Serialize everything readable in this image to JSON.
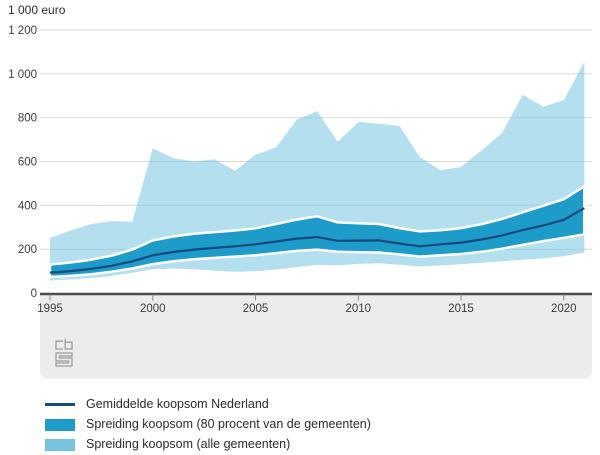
{
  "chart_data": {
    "type": "area",
    "unit_label": "1 000 euro",
    "x": [
      1995,
      1996,
      1997,
      1998,
      1999,
      2000,
      2001,
      2002,
      2003,
      2004,
      2005,
      2006,
      2007,
      2008,
      2009,
      2010,
      2011,
      2012,
      2013,
      2014,
      2015,
      2016,
      2017,
      2018,
      2019,
      2020,
      2021
    ],
    "x_tick_years": [
      1995,
      2000,
      2005,
      2010,
      2015,
      2020
    ],
    "x_tick_labels": [
      "1995",
      "2000",
      "2005",
      "2010",
      "2015",
      "2020"
    ],
    "y_ticks": [
      0,
      200,
      400,
      600,
      800,
      1000,
      1200
    ],
    "y_tick_labels": [
      "0",
      "200",
      "400",
      "600",
      "800",
      "1 000",
      "1 200"
    ],
    "ylim": [
      0,
      1200
    ],
    "grid": true,
    "legend_position": "bottom",
    "series": [
      {
        "name": "Gemiddelde koopsom Nederland",
        "type": "line",
        "color": "#17497c",
        "values": [
          93,
          100,
          110,
          124,
          144,
          172,
          187,
          198,
          206,
          213,
          222,
          235,
          248,
          255,
          238,
          239,
          240,
          226,
          213,
          222,
          230,
          244,
          263,
          287,
          308,
          334,
          387
        ]
      },
      {
        "name": "Spreiding koopsom (80 procent van de gemeenten)",
        "type": "band",
        "color": "#1d9cc9",
        "low": [
          73,
          78,
          86,
          97,
          112,
          132,
          145,
          154,
          160,
          166,
          172,
          182,
          192,
          198,
          188,
          186,
          185,
          176,
          166,
          172,
          178,
          188,
          202,
          220,
          237,
          252,
          268
        ],
        "high": [
          130,
          139,
          152,
          170,
          198,
          240,
          258,
          270,
          278,
          285,
          295,
          315,
          335,
          350,
          322,
          318,
          315,
          296,
          281,
          286,
          296,
          314,
          338,
          368,
          398,
          428,
          487
        ]
      },
      {
        "name": "Spreiding koopsom (alle gemeenten)",
        "type": "band",
        "color": "#77c4e0",
        "low": [
          57,
          62,
          68,
          78,
          92,
          108,
          112,
          108,
          102,
          97,
          99,
          107,
          118,
          128,
          126,
          133,
          136,
          129,
          121,
          126,
          131,
          138,
          145,
          152,
          159,
          168,
          185
        ],
        "high": [
          250,
          285,
          315,
          328,
          325,
          660,
          615,
          600,
          610,
          558,
          630,
          665,
          790,
          830,
          690,
          780,
          772,
          762,
          620,
          560,
          575,
          650,
          730,
          905,
          850,
          880,
          1055
        ]
      }
    ]
  },
  "legend": {
    "items": [
      {
        "label": "Gemiddelde koopsom Nederland",
        "swatch": "line",
        "color": "#17497c"
      },
      {
        "label": "Spreiding koopsom (80 procent van de gemeenten)",
        "swatch": "rect",
        "color": "#1d9cc9"
      },
      {
        "label": "Spreiding koopsom (alle gemeenten)",
        "swatch": "rect",
        "color": "#77c4e0"
      }
    ]
  },
  "colors": {
    "gridline": "#d9d9d9",
    "axis": "#4b4b4b",
    "strip": "#ececec",
    "tick": "#8a8a8a",
    "tick_text": "#3c3c3c",
    "logo": "#9c9c9c",
    "outer_band_opacity": 0.55
  }
}
